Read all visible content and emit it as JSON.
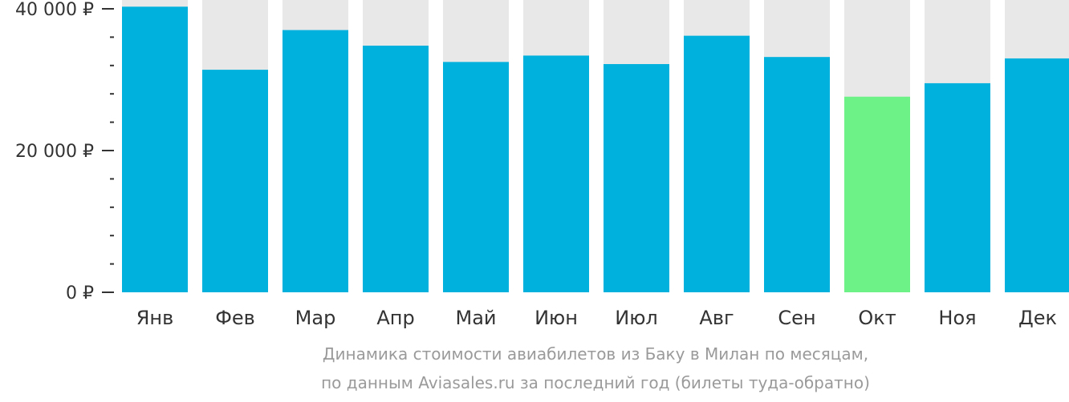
{
  "chart_data": {
    "type": "bar",
    "title": "",
    "xlabel": "",
    "ylabel": "",
    "categories": [
      "Янв",
      "Фев",
      "Мар",
      "Апр",
      "Май",
      "Июн",
      "Июл",
      "Авг",
      "Сен",
      "Окт",
      "Ноя",
      "Дек"
    ],
    "series": [
      {
        "values": [
          40300,
          31400,
          37000,
          34800,
          32500,
          33400,
          32200,
          36200,
          33200,
          27600,
          29500,
          33000
        ]
      }
    ],
    "ylim": [
      0,
      41000
    ],
    "yticks": [
      {
        "value": 0,
        "label": "0 ₽"
      },
      {
        "value": 20000,
        "label": "20 000 ₽"
      },
      {
        "value": 40000,
        "label": "40 000 ₽"
      }
    ],
    "grid": false,
    "highlight_index": 9,
    "colors": {
      "bar": "#00b0dd",
      "highlight": "#6cf286",
      "background_column": "#e8e8e8",
      "tick_text": "#333333",
      "axis": "#333333"
    }
  },
  "caption": {
    "line1": "Динамика стоимости авиабилетов из Баку в Милан по месяцам,",
    "line2": "по данным Aviasales.ru за последний год (билеты туда-обратно)"
  }
}
